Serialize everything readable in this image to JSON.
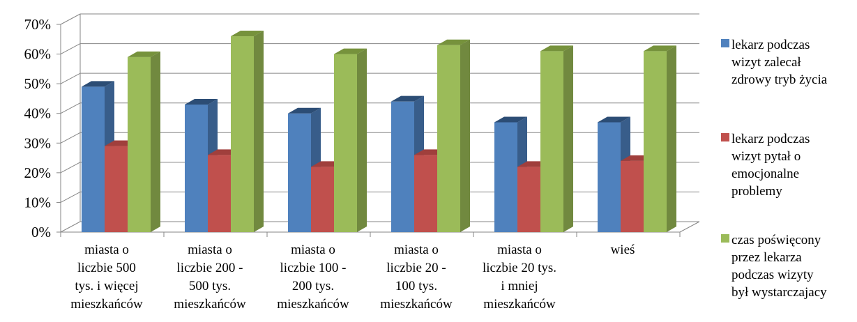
{
  "chart_data": {
    "type": "bar",
    "subtype": "3d-clustered-column",
    "title": "",
    "xlabel": "",
    "ylabel": "",
    "ylim": [
      0,
      70
    ],
    "y_tick_step": 10,
    "y_tick_format": "percent",
    "grid": true,
    "legend_position": "right",
    "categories": [
      [
        "miasta o",
        "liczbie 500",
        "tys. i więcej",
        "mieszkańców"
      ],
      [
        "miasta o",
        "liczbie 200 -",
        "500 tys.",
        "mieszkańców"
      ],
      [
        "miasta o",
        "liczbie 100 -",
        "200 tys.",
        "mieszkańców"
      ],
      [
        "miasta o",
        "liczbie 20 -",
        "100 tys.",
        "mieszkańców"
      ],
      [
        "miasta o",
        "liczbie 20 tys.",
        "i mniej",
        "mieszkańców"
      ],
      [
        "wieś"
      ]
    ],
    "series": [
      {
        "name": [
          "lekarz podczas",
          "wizyt zalecał",
          "zdrowy tryb życia"
        ],
        "color": "#4F81BD",
        "side": "#385D8A",
        "top": "#2C4D75",
        "values": [
          49,
          43,
          40,
          44,
          37,
          37
        ]
      },
      {
        "name": [
          "lekarz podczas",
          "wizyt pytał o",
          "emocjonalne",
          "problemy"
        ],
        "color": "#C0504D",
        "side": "#8C3836",
        "top": "#A03F3C",
        "values": [
          29,
          26,
          22,
          26,
          22,
          24
        ]
      },
      {
        "name": [
          "czas poświęcony",
          "przez lekarza",
          "podczas wizyty",
          "był wystarczajacy"
        ],
        "color": "#9BBB59",
        "side": "#71893F",
        "top": "#76923C",
        "values": [
          59,
          66,
          60,
          63,
          61,
          61
        ]
      }
    ]
  }
}
